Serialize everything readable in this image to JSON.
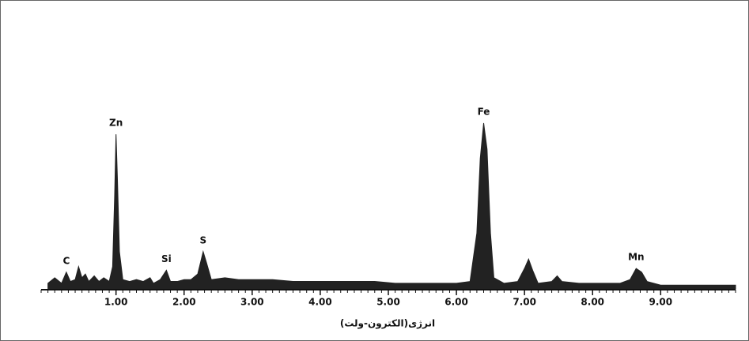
{
  "chart_data": {
    "type": "spectrum",
    "xlabel": "انرژی(الکترون-ولت)",
    "x": [
      0,
      0.1,
      0.2,
      0.27,
      0.33,
      0.4,
      0.45,
      0.5,
      0.55,
      0.6,
      0.68,
      0.75,
      0.82,
      0.9,
      0.95,
      0.98,
      1.0,
      1.02,
      1.05,
      1.1,
      1.2,
      1.3,
      1.4,
      1.5,
      1.55,
      1.65,
      1.74,
      1.8,
      1.9,
      2.0,
      2.1,
      2.2,
      2.28,
      2.33,
      2.4,
      2.6,
      2.8,
      3.0,
      3.3,
      3.6,
      3.9,
      4.2,
      4.5,
      4.8,
      5.1,
      5.4,
      5.7,
      6.0,
      6.2,
      6.3,
      6.35,
      6.4,
      6.45,
      6.5,
      6.55,
      6.7,
      6.9,
      7.0,
      7.06,
      7.12,
      7.2,
      7.4,
      7.48,
      7.55,
      7.8,
      8.1,
      8.4,
      8.55,
      8.64,
      8.72,
      8.8,
      9.0,
      9.4,
      9.8,
      10.1
    ],
    "series": [
      {
        "color": "#222222",
        "values": [
          3,
          6,
          3,
          9,
          4,
          5,
          12,
          6,
          8,
          4,
          7,
          4,
          6,
          4,
          12,
          50,
          83,
          60,
          20,
          5,
          4,
          5,
          4,
          6,
          3,
          5,
          10,
          4,
          4,
          5,
          5,
          8,
          20,
          14,
          5,
          6,
          5,
          5,
          5,
          4,
          4,
          4,
          4,
          4,
          3,
          3,
          3,
          3,
          4,
          30,
          70,
          89,
          75,
          30,
          6,
          3,
          4,
          11,
          16,
          10,
          3,
          4,
          7,
          4,
          3,
          3,
          3,
          5,
          11,
          9,
          4,
          2,
          2,
          2,
          2
        ]
      }
    ],
    "peaks": [
      {
        "label": "C",
        "x": 0.27,
        "y": 9
      },
      {
        "label": "Zn",
        "x": 1.0,
        "y": 83
      },
      {
        "label": "Si",
        "x": 1.74,
        "y": 10
      },
      {
        "label": "S",
        "x": 2.28,
        "y": 20
      },
      {
        "label": "Fe",
        "x": 6.4,
        "y": 89
      },
      {
        "label": "Mn",
        "x": 8.64,
        "y": 11
      }
    ],
    "xlim": [
      -0.1,
      10.1
    ],
    "ylim": [
      0,
      100
    ],
    "xticks": [
      {
        "value": 1,
        "label": "1.00"
      },
      {
        "value": 2,
        "label": "2.00"
      },
      {
        "value": 3,
        "label": "3.00"
      },
      {
        "value": 4,
        "label": "4.00"
      },
      {
        "value": 5,
        "label": "5.00"
      },
      {
        "value": 6,
        "label": "6.00"
      },
      {
        "value": 7,
        "label": "7.00"
      },
      {
        "value": 8,
        "label": "8.00"
      },
      {
        "value": 9,
        "label": "9.00"
      }
    ]
  }
}
